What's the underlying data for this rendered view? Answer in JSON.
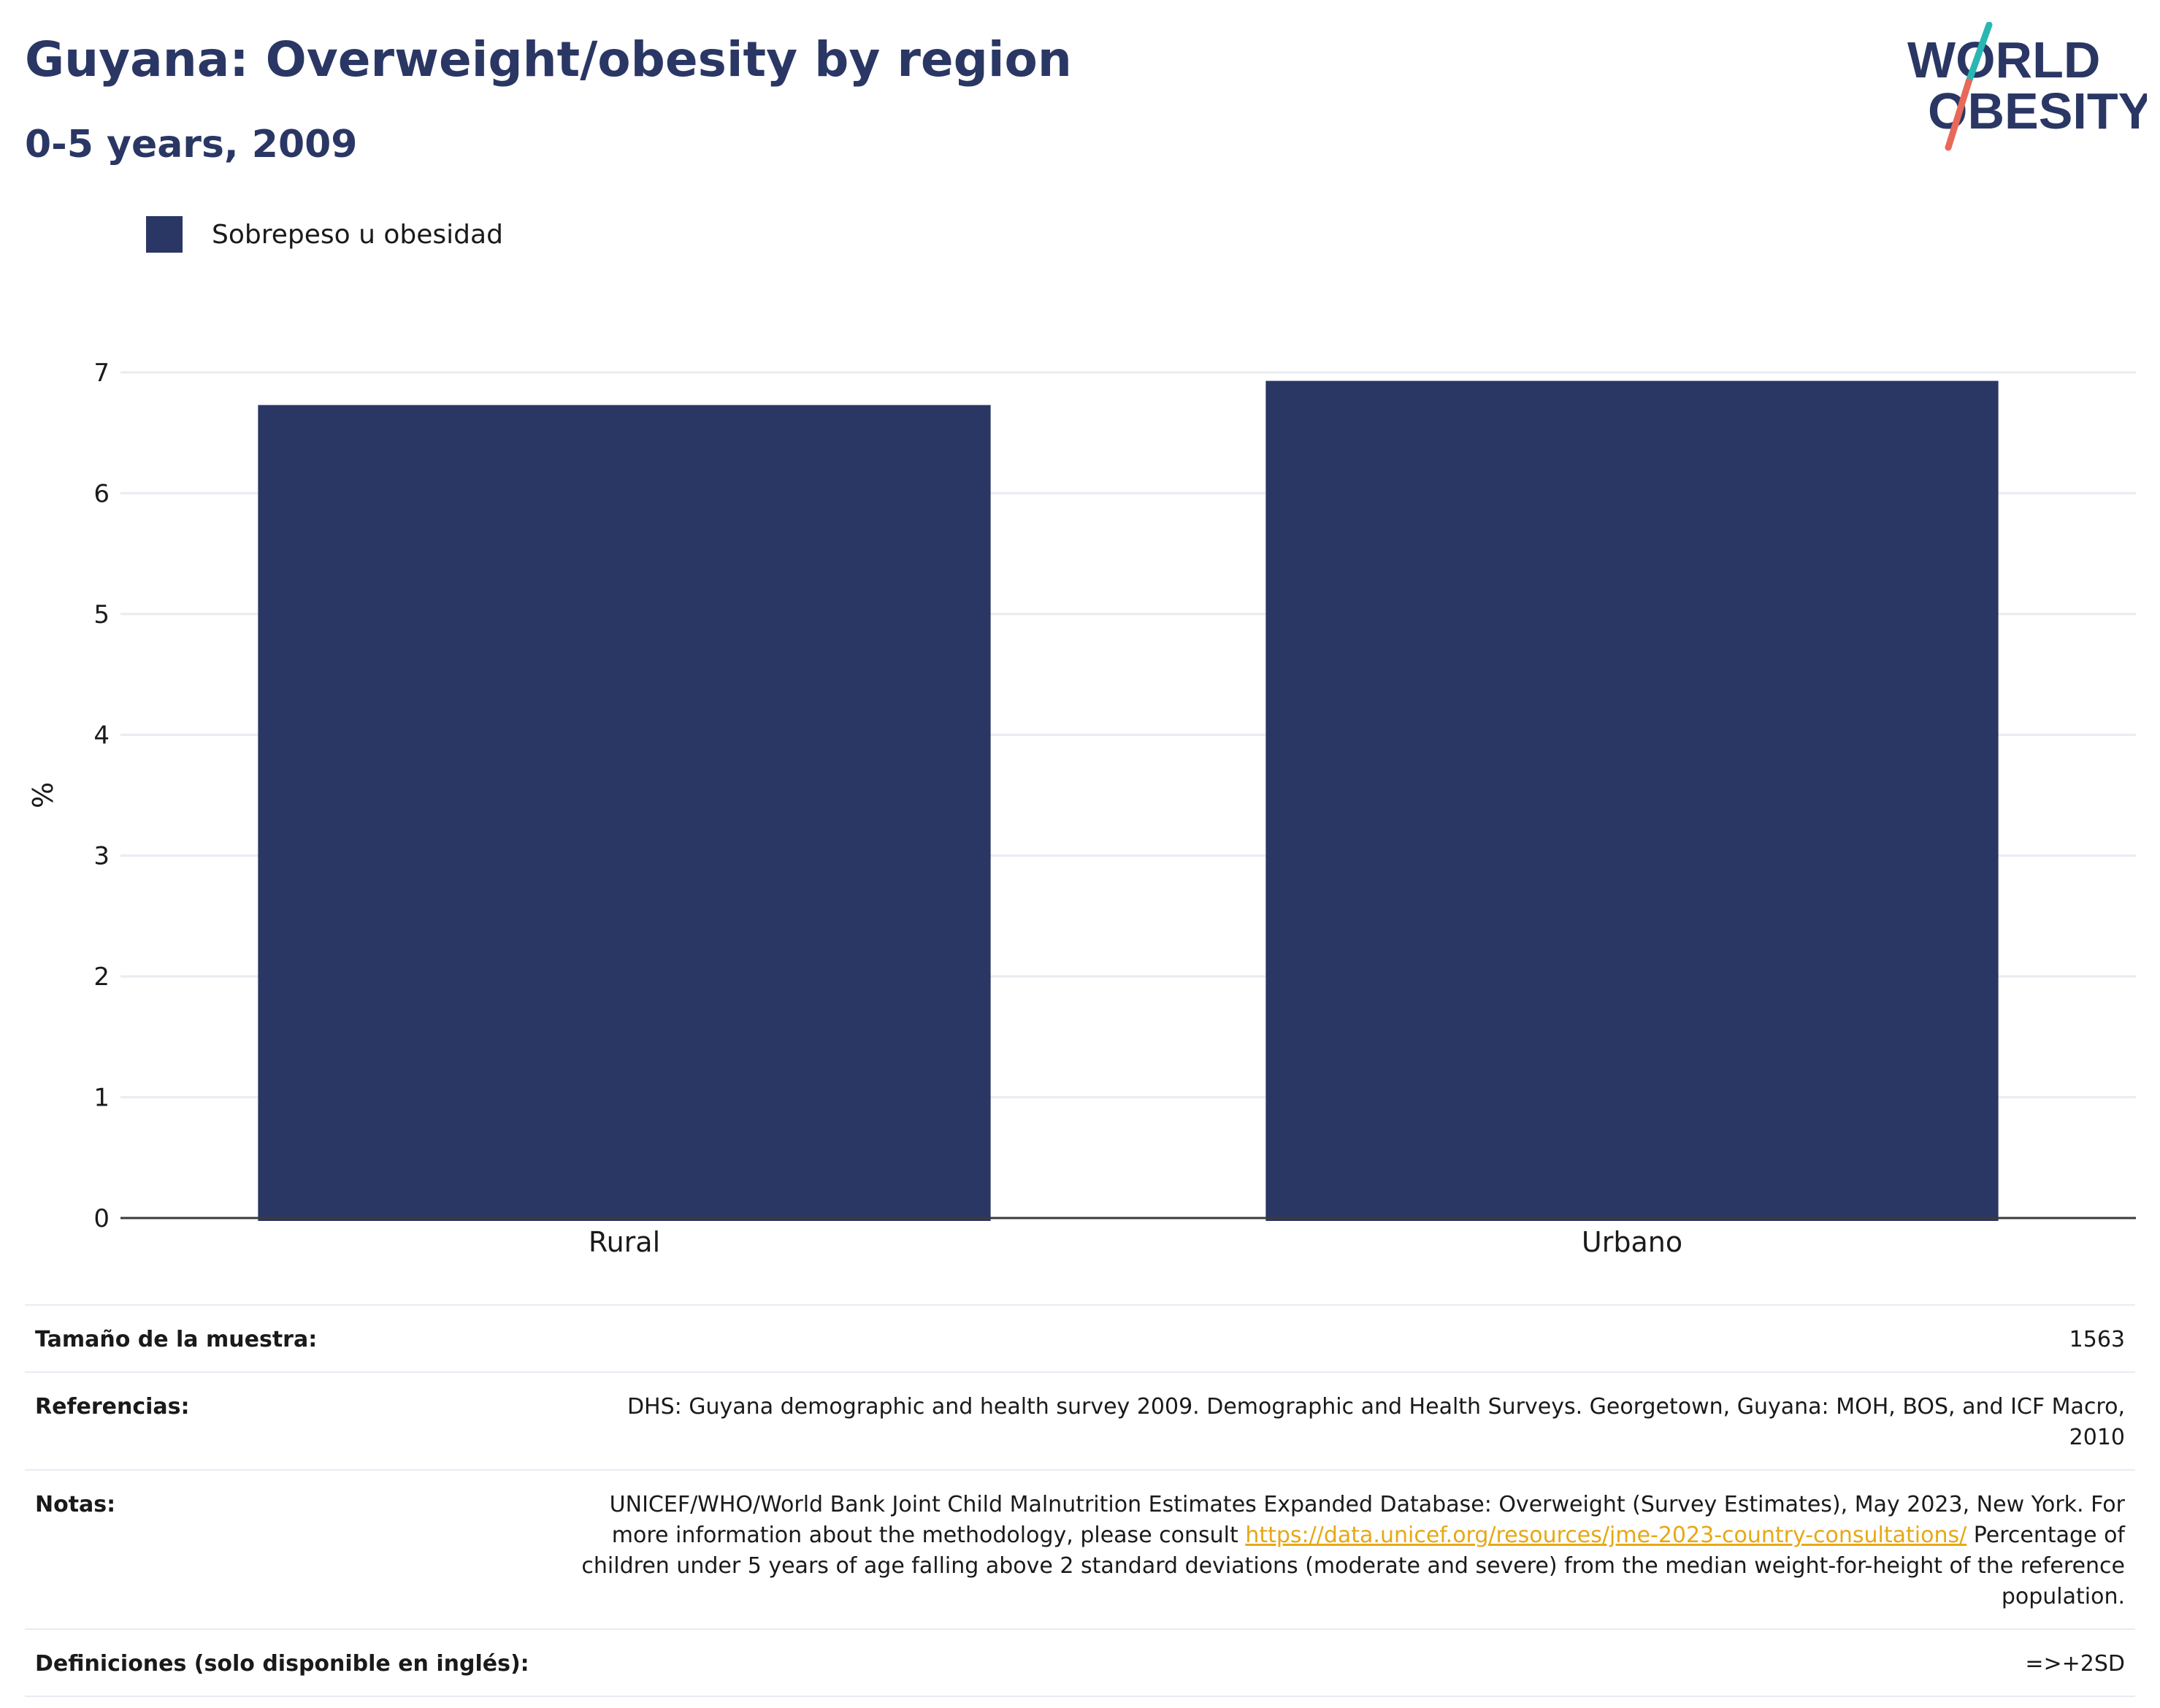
{
  "header": {
    "title": "Guyana: Overweight/obesity by region",
    "subtitle": "0-5 years, 2009"
  },
  "logo": {
    "line1": "WORLD",
    "line2": "OBESITY",
    "colors": {
      "text": "#2a3764",
      "slash_top": "#2ab7b3",
      "slash_bottom": "#e8695a"
    }
  },
  "legend": {
    "items": [
      {
        "label": "Sobrepeso u obesidad",
        "color": "#2a3764"
      }
    ]
  },
  "chart_data": {
    "type": "bar",
    "categories": [
      "Rural",
      "Urbano"
    ],
    "series": [
      {
        "name": "Sobrepeso u obesidad",
        "values": [
          6.73,
          6.93
        ],
        "color": "#2a3764"
      }
    ],
    "ylabel": "%",
    "ylim": [
      0,
      7
    ],
    "yticks": [
      0,
      1,
      2,
      3,
      4,
      5,
      6,
      7
    ],
    "grid": true,
    "legend_position": "top-left"
  },
  "meta": {
    "sample_size_label": "Tamaño de la muestra:",
    "sample_size_value": "1563",
    "references_label": "Referencias:",
    "references_value": "DHS: Guyana demographic and health survey 2009. Demographic and Health Surveys. Georgetown, Guyana: MOH, BOS, and ICF Macro, 2010",
    "notes_label": "Notas:",
    "notes_text_1": "UNICEF/WHO/World Bank Joint Child Malnutrition Estimates Expanded Database: Overweight (Survey Estimates), May 2023, New York. For more information about the methodology, please consult ",
    "notes_link": "https://data.unicef.org/resources/jme-2023-country-consultations/",
    "notes_text_2": "Percentage of children under 5 years of age falling above 2 standard deviations (moderate and severe) from the median weight-for-height of the reference population.",
    "definitions_label": "Definiciones (solo disponible en inglés):",
    "definitions_value": "=>+2SD"
  }
}
